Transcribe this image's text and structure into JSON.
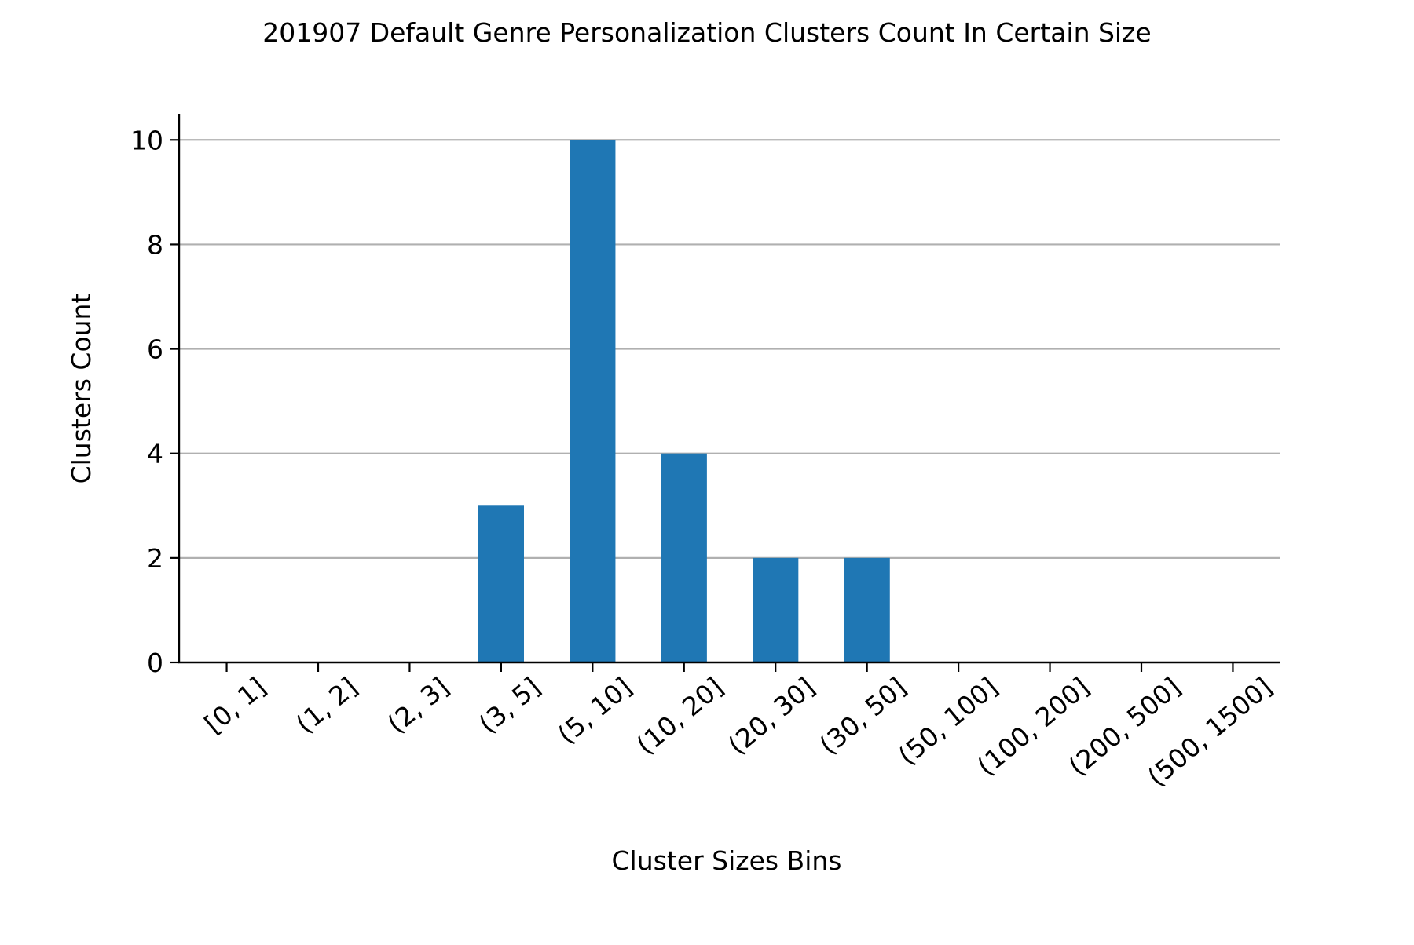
{
  "chart_data": {
    "type": "bar",
    "title": "201907 Default Genre Personalization Clusters Count In Certain Size",
    "xlabel": "Cluster Sizes Bins",
    "ylabel": "Clusters Count",
    "categories": [
      "[0, 1]",
      "(1, 2]",
      "(2, 3]",
      "(3, 5]",
      "(5, 10]",
      "(10, 20]",
      "(20, 30]",
      "(30, 50]",
      "(50, 100]",
      "(100, 200]",
      "(200, 500]",
      "(500, 1500]"
    ],
    "values": [
      0,
      0,
      0,
      3,
      10,
      4,
      2,
      2,
      0,
      0,
      0,
      0
    ],
    "ylim": [
      0,
      10.5
    ],
    "yticks": [
      0,
      2,
      4,
      6,
      8,
      10
    ],
    "grid": "horizontal",
    "legend": "none",
    "colors": {
      "bar": "#1f77b4",
      "grid": "#b0b0b0",
      "axis": "#000000"
    }
  }
}
